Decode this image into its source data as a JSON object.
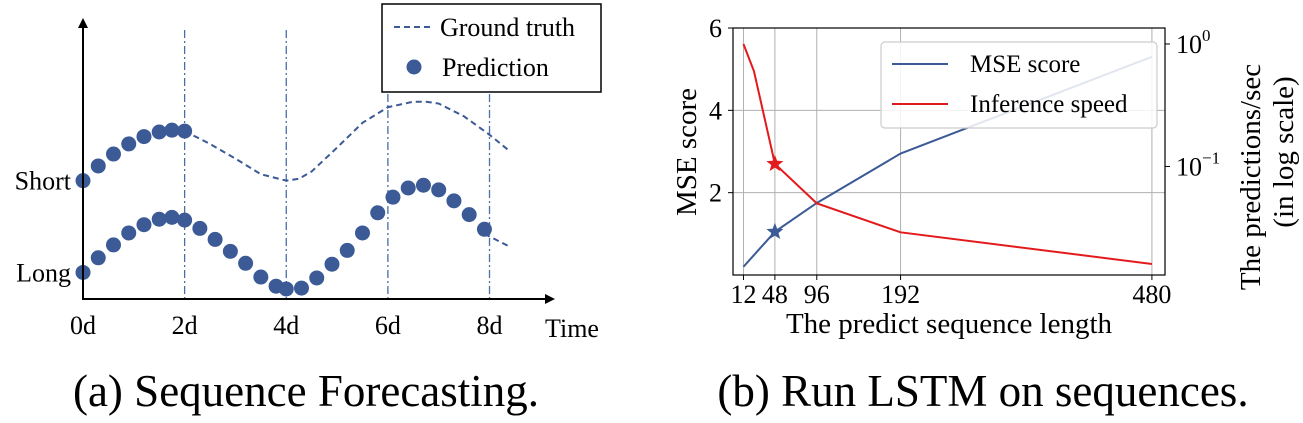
{
  "colors": {
    "series_blue": "#3b5a96",
    "speed_red": "#e31a1c",
    "guide": "#4a6fa5",
    "grid": "#b0b0b0",
    "axis": "#000000"
  },
  "panel_a": {
    "caption": "(a) Sequence Forecasting.",
    "chart_data": {
      "type": "scatter",
      "xlabel": "Time",
      "ylabel": "",
      "x_ticks": [
        "0d",
        "2d",
        "4d",
        "6d",
        "8d"
      ],
      "x_tick_values": [
        0,
        2,
        4,
        6,
        8
      ],
      "xlim": [
        0,
        8.6
      ],
      "y_tick_labels": [
        "Short",
        "Long"
      ],
      "y_tick_values": [
        1,
        0
      ],
      "ylim": [
        -0.3,
        2.75
      ],
      "vertical_guides_at": [
        2,
        4,
        6,
        8
      ],
      "legend": {
        "placement": "top-right",
        "entries": [
          "Ground truth",
          "Prediction"
        ]
      },
      "series": [
        {
          "name": "Ground truth",
          "style": "dashed-line",
          "group": "short",
          "x": [
            2.0,
            2.5,
            3.0,
            3.5,
            4.0,
            4.25,
            4.5,
            5.0,
            5.5,
            6.0,
            6.5,
            6.75,
            7.0,
            7.5,
            8.0,
            8.4
          ],
          "y": [
            1.54,
            1.4,
            1.24,
            1.07,
            1.0,
            1.02,
            1.1,
            1.36,
            1.63,
            1.8,
            1.86,
            1.86,
            1.84,
            1.7,
            1.5,
            1.32
          ]
        },
        {
          "name": "Prediction",
          "style": "markers",
          "group": "short",
          "x": [
            0.0,
            0.3,
            0.6,
            0.9,
            1.2,
            1.5,
            1.75,
            2.0
          ],
          "y": [
            1.0,
            1.16,
            1.29,
            1.4,
            1.48,
            1.53,
            1.55,
            1.54
          ]
        },
        {
          "name": "Ground truth",
          "style": "dashed-line",
          "group": "long",
          "x": [
            7.9,
            8.4
          ],
          "y": [
            0.42,
            0.28
          ]
        },
        {
          "name": "Prediction",
          "style": "markers",
          "group": "long",
          "x": [
            0.0,
            0.3,
            0.6,
            0.9,
            1.2,
            1.5,
            1.75,
            2.0,
            2.3,
            2.6,
            2.9,
            3.2,
            3.5,
            3.8,
            4.0,
            4.3,
            4.6,
            4.9,
            5.2,
            5.5,
            5.8,
            6.1,
            6.4,
            6.7,
            7.0,
            7.3,
            7.6,
            7.9
          ],
          "y": [
            0.0,
            0.16,
            0.3,
            0.43,
            0.52,
            0.58,
            0.6,
            0.57,
            0.48,
            0.36,
            0.23,
            0.1,
            -0.05,
            -0.15,
            -0.18,
            -0.17,
            -0.06,
            0.09,
            0.24,
            0.43,
            0.65,
            0.82,
            0.92,
            0.95,
            0.9,
            0.78,
            0.63,
            0.47
          ]
        }
      ]
    }
  },
  "panel_b": {
    "caption": "(b) Run LSTM on sequences.",
    "chart_data": {
      "type": "line",
      "xlabel": "The predict sequence length",
      "ylabel": "MSE score",
      "y2label_line1": "The predictions/sec",
      "y2label_line2": "(in log scale)",
      "x_ticks": [
        "12",
        "48",
        "96",
        "192",
        "480"
      ],
      "x_tick_values": [
        12,
        48,
        96,
        192,
        480
      ],
      "xlim": [
        0,
        495
      ],
      "ylim": [
        0,
        6
      ],
      "y_ticks": [
        "2",
        "4",
        "6"
      ],
      "y_tick_values": [
        2,
        4,
        6
      ],
      "y2_scale": "log",
      "y2lim": [
        0.013,
        1.35
      ],
      "y2_ticks": [
        {
          "base": "10",
          "exp": "0",
          "value": 1.0
        },
        {
          "base": "10",
          "exp": "−1",
          "value": 0.1
        }
      ],
      "grid": true,
      "legend": {
        "placement": "top-right",
        "entries": [
          "MSE score",
          "Inference speed"
        ]
      },
      "series": [
        {
          "name": "MSE score",
          "axis": "left",
          "x": [
            12,
            48,
            96,
            192,
            480
          ],
          "y": [
            0.2,
            1.05,
            1.75,
            2.95,
            5.3
          ]
        },
        {
          "name": "Inference speed",
          "axis": "right",
          "x": [
            12,
            24,
            48,
            96,
            192,
            480
          ],
          "y": [
            1.0,
            0.6,
            0.105,
            0.05,
            0.029,
            0.016
          ]
        }
      ],
      "markers": [
        {
          "series": "MSE score",
          "symbol": "star",
          "x": 48,
          "y": 1.05
        },
        {
          "series": "Inference speed",
          "symbol": "star",
          "x": 48,
          "y": 0.105
        }
      ]
    }
  }
}
